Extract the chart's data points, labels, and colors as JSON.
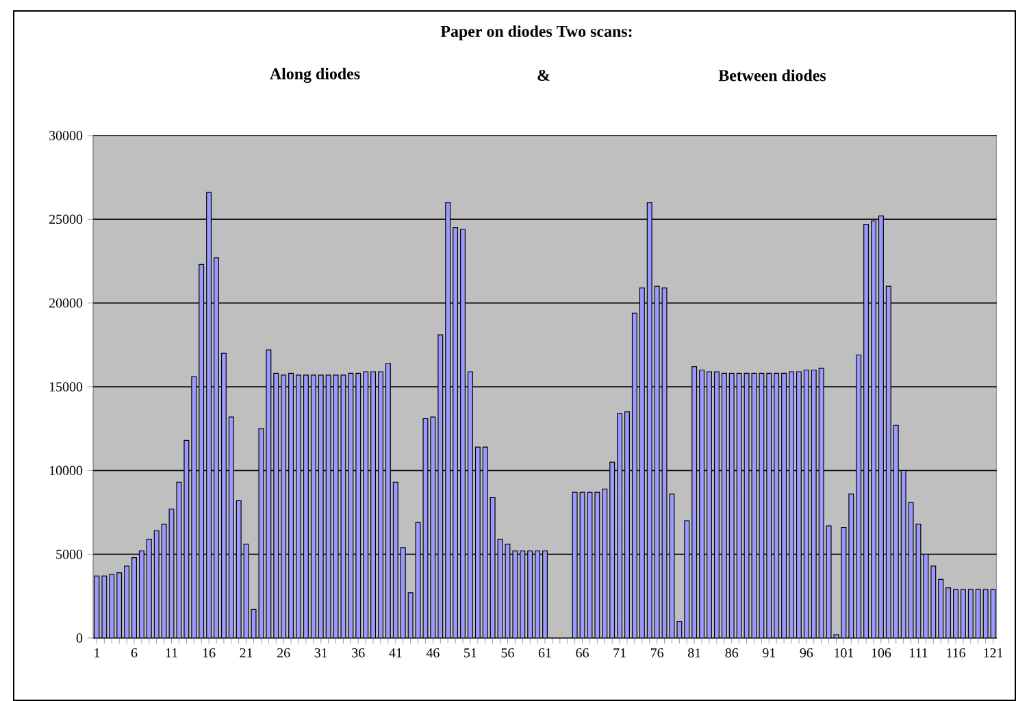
{
  "chart_data": {
    "type": "bar",
    "title": "Paper on diodes Two scans:",
    "annotations": [
      "Along diodes",
      "&",
      "Between diodes"
    ],
    "categories": [
      "1",
      null,
      null,
      null,
      null,
      "6",
      null,
      null,
      null,
      null,
      "11",
      null,
      null,
      null,
      null,
      "16",
      null,
      null,
      null,
      null,
      "21",
      null,
      null,
      null,
      null,
      "26",
      null,
      null,
      null,
      null,
      "31",
      null,
      null,
      null,
      null,
      "36",
      null,
      null,
      null,
      null,
      "41",
      null,
      null,
      null,
      null,
      "46",
      null,
      null,
      null,
      null,
      "51",
      null,
      null,
      null,
      null,
      "56",
      null,
      null,
      null,
      null,
      "61",
      null,
      null,
      null,
      null,
      "66",
      null,
      null,
      null,
      null,
      "71",
      null,
      null,
      null,
      null,
      "76",
      null,
      null,
      null,
      null,
      "81",
      null,
      null,
      null,
      null,
      "86",
      null,
      null,
      null,
      null,
      "91",
      null,
      null,
      null,
      null,
      "96",
      null,
      null,
      null,
      null,
      "101",
      null,
      null,
      null,
      null,
      "106",
      null,
      null,
      null,
      null,
      "111",
      null,
      null,
      null,
      null,
      "116",
      null,
      null,
      null,
      null,
      "121"
    ],
    "values": [
      3700,
      3700,
      3800,
      3900,
      4300,
      4800,
      5200,
      5900,
      6400,
      6800,
      7700,
      9300,
      11800,
      15600,
      22300,
      26600,
      22700,
      17000,
      13200,
      8200,
      5600,
      1700,
      12500,
      17200,
      15800,
      15700,
      15800,
      15700,
      15700,
      15700,
      15700,
      15700,
      15700,
      15700,
      15800,
      15800,
      15900,
      15900,
      15900,
      16400,
      9300,
      5400,
      2700,
      6900,
      13100,
      13200,
      18100,
      26000,
      24500,
      24400,
      15900,
      11400,
      11400,
      8400,
      5900,
      5600,
      5200,
      5200,
      5200,
      5200,
      5200,
      null,
      null,
      null,
      8700,
      8700,
      8700,
      8700,
      8900,
      10500,
      13400,
      13500,
      19400,
      20900,
      26000,
      21000,
      20900,
      8600,
      1000,
      7000,
      16200,
      16000,
      15900,
      15900,
      15800,
      15800,
      15800,
      15800,
      15800,
      15800,
      15800,
      15800,
      15800,
      15900,
      15900,
      16000,
      16000,
      16100,
      6700,
      200,
      6600,
      8600,
      16900,
      24700,
      24900,
      25200,
      21000,
      12700,
      10000,
      8100,
      6800,
      5000,
      4300,
      3500,
      3000,
      2900,
      2900,
      2900,
      2900,
      2900,
      2900
    ],
    "color": "#9999ff",
    "ylim": [
      0,
      30000
    ],
    "yticks": [
      0,
      5000,
      10000,
      15000,
      20000,
      25000,
      30000
    ],
    "grid": "y"
  }
}
